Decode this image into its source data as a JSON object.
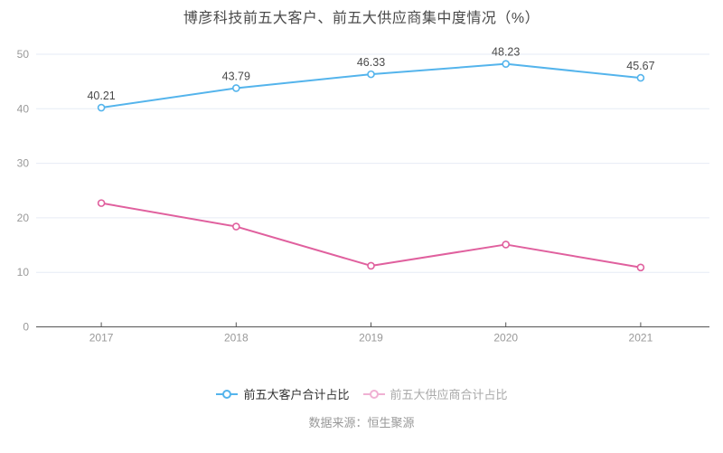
{
  "chart": {
    "title": "博彦科技前五大客户、前五大供应商集中度情况（%）",
    "source": "数据来源：恒生聚源"
  },
  "chart_data": {
    "type": "line",
    "title": "博彦科技前五大客户、前五大供应商集中度情况（%）",
    "xlabel": "",
    "ylabel": "",
    "categories": [
      "2017",
      "2018",
      "2019",
      "2020",
      "2021"
    ],
    "series": [
      {
        "name": "前五大客户合计占比",
        "values": [
          40.21,
          43.79,
          46.33,
          48.23,
          45.67
        ],
        "color": "#54b4ec",
        "show_labels": true
      },
      {
        "name": "前五大供应商合计占比",
        "values": [
          22.7,
          18.4,
          11.2,
          15.1,
          10.9
        ],
        "color": "#e0609e",
        "show_labels": false
      }
    ],
    "ylim": [
      0,
      50
    ],
    "y_ticks": [
      0,
      10,
      20,
      30,
      40,
      50
    ],
    "grid": true,
    "legend_position": "bottom",
    "colors": {
      "grid_line": "#e6ebf5",
      "axis_line": "#555555",
      "tick_label": "#999999",
      "data_label": "#4a4a4a"
    }
  },
  "legend": {
    "items": [
      {
        "label": "前五大客户合计占比",
        "text_color": "#333333",
        "marker_color": "#54b4ec"
      },
      {
        "label": "前五大供应商合计占比",
        "text_color": "#aaaaaa",
        "marker_color": "#f0b1d3"
      }
    ]
  }
}
